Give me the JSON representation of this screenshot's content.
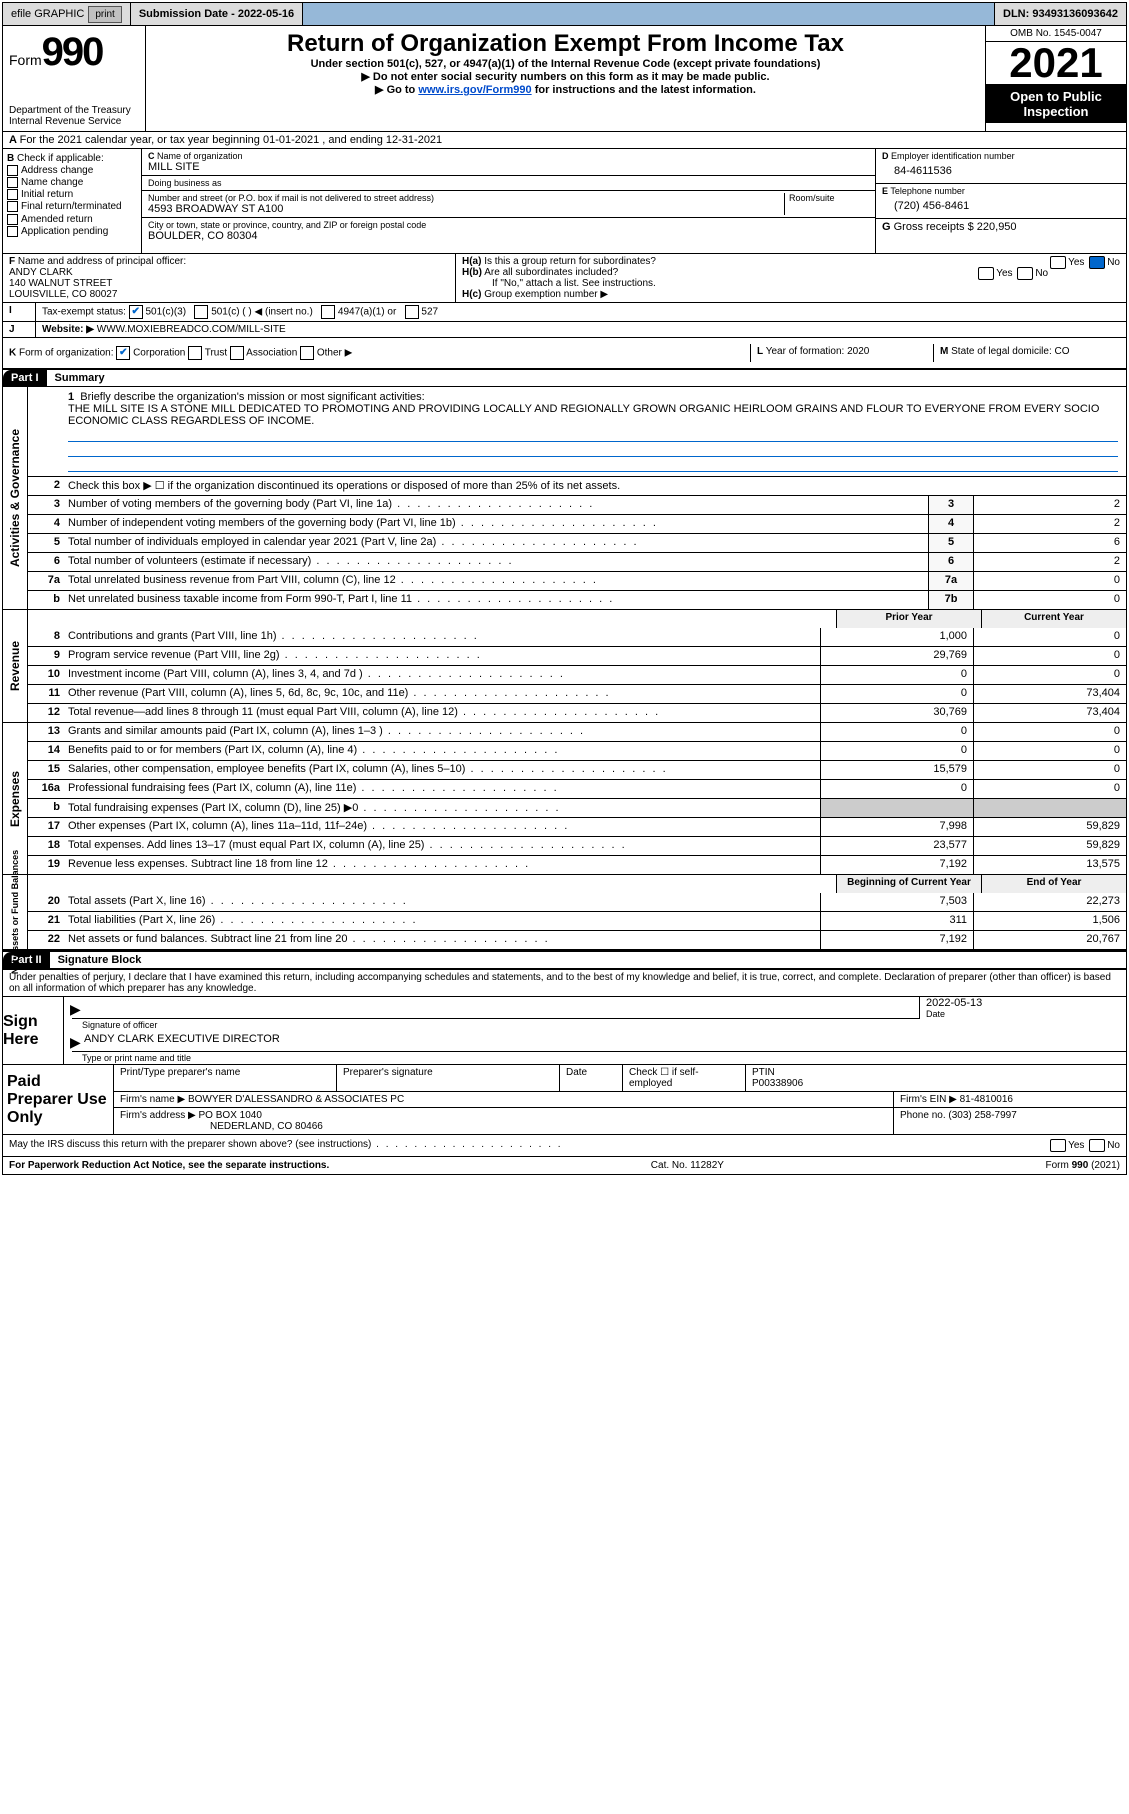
{
  "topbar": {
    "efile": "efile GRAPHIC",
    "print": "print",
    "submission": "Submission Date - 2022-05-16",
    "dln": "DLN: 93493136093642"
  },
  "header": {
    "form_label": "Form",
    "form_number": "990",
    "title": "Return of Organization Exempt From Income Tax",
    "subtitle": "Under section 501(c), 527, or 4947(a)(1) of the Internal Revenue Code (except private foundations)",
    "note1": "Do not enter social security numbers on this form as it may be made public.",
    "note2_prefix": "Go to ",
    "note2_link": "www.irs.gov/Form990",
    "note2_suffix": " for instructions and the latest information.",
    "dept": "Department of the Treasury\nInternal Revenue Service",
    "omb": "OMB No. 1545-0047",
    "year": "2021",
    "inspection": "Open to Public Inspection"
  },
  "row_a": "For the 2021 calendar year, or tax year beginning 01-01-2021   , and ending 12-31-2021",
  "section_b": {
    "label": "Check if applicable:",
    "items": [
      "Address change",
      "Name change",
      "Initial return",
      "Final return/terminated",
      "Amended return",
      "Application pending"
    ]
  },
  "section_c": {
    "name_label": "Name of organization",
    "name": "MILL SITE",
    "dba_label": "Doing business as",
    "dba": "",
    "addr_label": "Number and street (or P.O. box if mail is not delivered to street address)",
    "room_label": "Room/suite",
    "addr": "4593 BROADWAY ST A100",
    "city_label": "City or town, state or province, country, and ZIP or foreign postal code",
    "city": "BOULDER, CO  80304"
  },
  "section_d": {
    "ein_label": "Employer identification number",
    "ein": "84-4611536",
    "phone_label": "Telephone number",
    "phone": "(720) 456-8461",
    "gross_label": "Gross receipts $",
    "gross": "220,950"
  },
  "section_f": {
    "label": "Name and address of principal officer:",
    "name": "ANDY CLARK",
    "addr1": "140 WALNUT STREET",
    "addr2": "LOUISVILLE, CO  80027"
  },
  "section_h": {
    "ha": "Is this a group return for subordinates?",
    "hb": "Are all subordinates included?",
    "hb_note": "If \"No,\" attach a list. See instructions.",
    "hc": "Group exemption number ▶"
  },
  "tax_status": {
    "label": "Tax-exempt status:",
    "opts": [
      "501(c)(3)",
      "501(c) (  ) ◀ (insert no.)",
      "4947(a)(1) or",
      "527"
    ]
  },
  "website": {
    "label": "Website: ▶",
    "value": "WWW.MOXIEBREADCO.COM/MILL-SITE"
  },
  "row_k": {
    "label": "Form of organization:",
    "opts": [
      "Corporation",
      "Trust",
      "Association",
      "Other ▶"
    ],
    "l_label": "Year of formation:",
    "l_val": "2020",
    "m_label": "State of legal domicile:",
    "m_val": "CO"
  },
  "part1": {
    "hdr": "Part I",
    "title": "Summary",
    "q1_label": "Briefly describe the organization's mission or most significant activities:",
    "mission": "THE MILL SITE IS A STONE MILL DEDICATED TO PROMOTING AND PROVIDING LOCALLY AND REGIONALLY GROWN ORGANIC HEIRLOOM GRAINS AND FLOUR TO EVERYONE FROM EVERY SOCIO ECONOMIC CLASS REGARDLESS OF INCOME.",
    "q2": "Check this box ▶ ☐ if the organization discontinued its operations or disposed of more than 25% of its net assets.",
    "q3": "Number of voting members of the governing body (Part VI, line 1a)",
    "q3_box": "3",
    "q3_val": "2",
    "q4": "Number of independent voting members of the governing body (Part VI, line 1b)",
    "q4_box": "4",
    "q4_val": "2",
    "q5": "Total number of individuals employed in calendar year 2021 (Part V, line 2a)",
    "q5_box": "5",
    "q5_val": "6",
    "q6": "Total number of volunteers (estimate if necessary)",
    "q6_box": "6",
    "q6_val": "2",
    "q7a": "Total unrelated business revenue from Part VIII, column (C), line 12",
    "q7a_box": "7a",
    "q7a_val": "0",
    "q7b": "Net unrelated business taxable income from Form 990-T, Part I, line 11",
    "q7b_box": "7b",
    "q7b_val": "0"
  },
  "revenue": {
    "side": "Revenue",
    "prior_hdr": "Prior Year",
    "current_hdr": "Current Year",
    "rows": [
      {
        "n": "8",
        "d": "Contributions and grants (Part VIII, line 1h)",
        "p": "1,000",
        "c": "0"
      },
      {
        "n": "9",
        "d": "Program service revenue (Part VIII, line 2g)",
        "p": "29,769",
        "c": "0"
      },
      {
        "n": "10",
        "d": "Investment income (Part VIII, column (A), lines 3, 4, and 7d )",
        "p": "0",
        "c": "0"
      },
      {
        "n": "11",
        "d": "Other revenue (Part VIII, column (A), lines 5, 6d, 8c, 9c, 10c, and 11e)",
        "p": "0",
        "c": "73,404"
      },
      {
        "n": "12",
        "d": "Total revenue—add lines 8 through 11 (must equal Part VIII, column (A), line 12)",
        "p": "30,769",
        "c": "73,404"
      }
    ]
  },
  "expenses": {
    "side": "Expenses",
    "rows": [
      {
        "n": "13",
        "d": "Grants and similar amounts paid (Part IX, column (A), lines 1–3 )",
        "p": "0",
        "c": "0"
      },
      {
        "n": "14",
        "d": "Benefits paid to or for members (Part IX, column (A), line 4)",
        "p": "0",
        "c": "0"
      },
      {
        "n": "15",
        "d": "Salaries, other compensation, employee benefits (Part IX, column (A), lines 5–10)",
        "p": "15,579",
        "c": "0"
      },
      {
        "n": "16a",
        "d": "Professional fundraising fees (Part IX, column (A), line 11e)",
        "p": "0",
        "c": "0"
      },
      {
        "n": "b",
        "d": "Total fundraising expenses (Part IX, column (D), line 25) ▶0",
        "p": "",
        "c": "",
        "shaded": true
      },
      {
        "n": "17",
        "d": "Other expenses (Part IX, column (A), lines 11a–11d, 11f–24e)",
        "p": "7,998",
        "c": "59,829"
      },
      {
        "n": "18",
        "d": "Total expenses. Add lines 13–17 (must equal Part IX, column (A), line 25)",
        "p": "23,577",
        "c": "59,829"
      },
      {
        "n": "19",
        "d": "Revenue less expenses. Subtract line 18 from line 12",
        "p": "7,192",
        "c": "13,575"
      }
    ]
  },
  "netassets": {
    "side": "Net Assets or Fund Balances",
    "begin_hdr": "Beginning of Current Year",
    "end_hdr": "End of Year",
    "rows": [
      {
        "n": "20",
        "d": "Total assets (Part X, line 16)",
        "p": "7,503",
        "c": "22,273"
      },
      {
        "n": "21",
        "d": "Total liabilities (Part X, line 26)",
        "p": "311",
        "c": "1,506"
      },
      {
        "n": "22",
        "d": "Net assets or fund balances. Subtract line 21 from line 20",
        "p": "7,192",
        "c": "20,767"
      }
    ]
  },
  "part2": {
    "hdr": "Part II",
    "title": "Signature Block",
    "declaration": "Under penalties of perjury, I declare that I have examined this return, including accompanying schedules and statements, and to the best of my knowledge and belief, it is true, correct, and complete. Declaration of preparer (other than officer) is based on all information of which preparer has any knowledge."
  },
  "sign": {
    "label": "Sign Here",
    "sig_label": "Signature of officer",
    "date_label": "Date",
    "date": "2022-05-13",
    "name_label": "Type or print name and title",
    "name": "ANDY CLARK  EXECUTIVE DIRECTOR"
  },
  "preparer": {
    "label": "Paid Preparer Use Only",
    "col1": "Print/Type preparer's name",
    "col2": "Preparer's signature",
    "col3": "Date",
    "col4_check": "Check ☐ if self-employed",
    "col5_label": "PTIN",
    "ptin": "P00338906",
    "firm_label": "Firm's name    ▶",
    "firm": "BOWYER D'ALESSANDRO & ASSOCIATES PC",
    "ein_label": "Firm's EIN ▶",
    "ein": "81-4810016",
    "addr_label": "Firm's address ▶",
    "addr1": "PO BOX 1040",
    "addr2": "NEDERLAND, CO  80466",
    "phone_label": "Phone no.",
    "phone": "(303) 258-7997"
  },
  "irs_discuss": "May the IRS discuss this return with the preparer shown above? (see instructions)",
  "footer": {
    "left": "For Paperwork Reduction Act Notice, see the separate instructions.",
    "mid": "Cat. No. 11282Y",
    "right": "Form 990 (2021)"
  },
  "side_labels": {
    "activities": "Activities & Governance"
  }
}
